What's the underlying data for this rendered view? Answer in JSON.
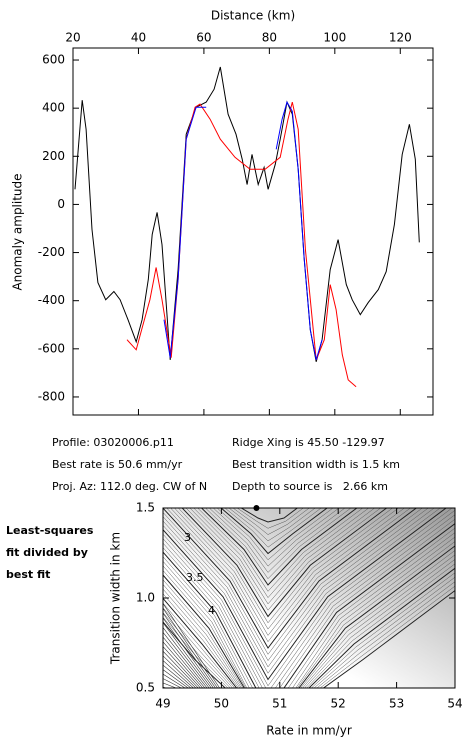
{
  "chart_data": [
    {
      "type": "line",
      "title": "Distance (km)",
      "ylabel": "Anomaly amplitude",
      "xlim": [
        20,
        130
      ],
      "xticks": [
        20,
        40,
        60,
        80,
        100,
        120
      ],
      "ylim": [
        -875,
        650
      ],
      "yticks": [
        -800,
        -600,
        -400,
        -200,
        0,
        200,
        400,
        600
      ],
      "series": [
        {
          "color": "#000000",
          "x": [
            20.6,
            22.8,
            24,
            25.8,
            27.6,
            30,
            32.5,
            34.4,
            36.8,
            39.3,
            41.1,
            43,
            44.2,
            45.7,
            47.2,
            49.7,
            52.1,
            54.6,
            57.6,
            60.7,
            63.1,
            65,
            67.4,
            69.8,
            71.7,
            73.2,
            74.7,
            76.6,
            78.4,
            79.6,
            81.8,
            83.3,
            85.4,
            87,
            88.8,
            90.6,
            92.5,
            94.3,
            96.1,
            98.6,
            101,
            103.5,
            105.3,
            107.8,
            110.2,
            113.3,
            115.7,
            118.2,
            120.6,
            122.8,
            124.6,
            125.8
          ],
          "values": [
            63,
            433,
            312,
            -104,
            -325,
            -396,
            -362,
            -396,
            -479,
            -571,
            -479,
            -312,
            -125,
            -33,
            -167,
            -646,
            -271,
            292,
            404,
            425,
            479,
            571,
            375,
            292,
            188,
            83,
            208,
            83,
            154,
            63,
            167,
            271,
            425,
            375,
            146,
            -221,
            -521,
            -654,
            -562,
            -271,
            -146,
            -333,
            -396,
            -458,
            -408,
            -354,
            -279,
            -83,
            208,
            333,
            188,
            -158
          ]
        },
        {
          "color": "#ff0000",
          "x": [
            36.5,
            39.3,
            41.4,
            43.5,
            45.4,
            47.2,
            50,
            52.1,
            54.6,
            57.3,
            58.8,
            61.9,
            65,
            69.5,
            74.1,
            78.7,
            83.3,
            85.7,
            87,
            88.8,
            91,
            94.3,
            96.8,
            98.6,
            100.4,
            102.3,
            104.1,
            106.5
          ],
          "values": [
            -562,
            -604,
            -500,
            -396,
            -262,
            -396,
            -637,
            -312,
            271,
            404,
            417,
            354,
            271,
            196,
            146,
            146,
            196,
            354,
            425,
            312,
            -187,
            -646,
            -562,
            -333,
            -437,
            -625,
            -729,
            -758
          ]
        },
        {
          "color": "#0000ff",
          "x": [
            47.8,
            49.7,
            52.1,
            54.6,
            57.6,
            60.7,
            71,
            82.1,
            83.9,
            85.4,
            87,
            88.8,
            90.6,
            92.5,
            94.3,
            96.1
          ],
          "values": [
            -479,
            -637,
            -312,
            271,
            404,
            404,
            null,
            229,
            354,
            425,
            387,
            146,
            -221,
            -521,
            -646,
            -562
          ]
        }
      ]
    },
    {
      "type": "contour",
      "xlabel": "Rate in mm/yr",
      "ylabel": "Transition width in km",
      "xlim": [
        49,
        54
      ],
      "xticks": [
        49,
        50,
        51,
        52,
        53,
        54
      ],
      "ylim": [
        0.5,
        1.5
      ],
      "yticks": [
        {
          "value": 0.5,
          "label": "0.5"
        },
        {
          "value": 1.0,
          "label": "1.0"
        },
        {
          "value": 1.5,
          "label": "1.5"
        }
      ],
      "contour_labels": [
        "3",
        "3.5",
        "4"
      ],
      "best_point": [
        50.6,
        1.5
      ]
    }
  ],
  "info": {
    "profile": "Profile: 03020006.p11",
    "rate": "Best rate is 50.6 mm/yr",
    "azimuth": "Proj. Az: 112.0 deg. CW of N",
    "ridge": "Ridge Xing is 45.50 -129.97",
    "width": "Best transition width is 1.5 km",
    "depth": "Depth to source is   2.66 km",
    "note": [
      "Least-squares",
      "fit divided by",
      "best fit"
    ]
  }
}
